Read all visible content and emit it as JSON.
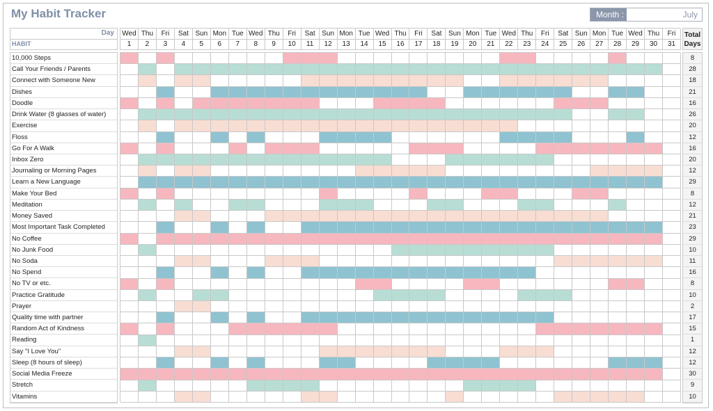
{
  "title": "My Habit Tracker",
  "month": {
    "label": "Month :",
    "value": "July"
  },
  "header": {
    "day_label": "Day",
    "habit_label": "HABIT",
    "total_label": "Total Days"
  },
  "days": [
    {
      "dow": "Wed",
      "num": "1"
    },
    {
      "dow": "Thu",
      "num": "2"
    },
    {
      "dow": "Fri",
      "num": "3"
    },
    {
      "dow": "Sat",
      "num": "4"
    },
    {
      "dow": "Sun",
      "num": "5"
    },
    {
      "dow": "Mon",
      "num": "6"
    },
    {
      "dow": "Tue",
      "num": "7"
    },
    {
      "dow": "Wed",
      "num": "8"
    },
    {
      "dow": "Thu",
      "num": "9"
    },
    {
      "dow": "Fri",
      "num": "10"
    },
    {
      "dow": "Sat",
      "num": "11"
    },
    {
      "dow": "Sun",
      "num": "12"
    },
    {
      "dow": "Mon",
      "num": "13"
    },
    {
      "dow": "Tue",
      "num": "14"
    },
    {
      "dow": "Wed",
      "num": "15"
    },
    {
      "dow": "Thu",
      "num": "16"
    },
    {
      "dow": "Fri",
      "num": "17"
    },
    {
      "dow": "Sat",
      "num": "18"
    },
    {
      "dow": "Sun",
      "num": "19"
    },
    {
      "dow": "Mon",
      "num": "20"
    },
    {
      "dow": "Tue",
      "num": "21"
    },
    {
      "dow": "Wed",
      "num": "22"
    },
    {
      "dow": "Thu",
      "num": "23"
    },
    {
      "dow": "Fri",
      "num": "24"
    },
    {
      "dow": "Sat",
      "num": "25"
    },
    {
      "dow": "Sun",
      "num": "26"
    },
    {
      "dow": "Mon",
      "num": "27"
    },
    {
      "dow": "Tue",
      "num": "28"
    },
    {
      "dow": "Wed",
      "num": "29"
    },
    {
      "dow": "Thu",
      "num": "30"
    },
    {
      "dow": "Fri",
      "num": "31"
    }
  ],
  "colors": {
    "pink": "#f7b7bf",
    "mint": "#b8ddd4",
    "peach": "#f8ddd3",
    "blue": "#8fc3d1"
  },
  "habits": [
    {
      "name": "10,000 Steps",
      "total": "8",
      "color": "pink",
      "done": [
        1,
        3,
        10,
        11,
        12,
        22,
        23,
        28
      ]
    },
    {
      "name": "Call Your Friends / Parents",
      "total": "28",
      "color": "mint",
      "done": [
        2,
        4,
        5,
        6,
        7,
        8,
        9,
        10,
        11,
        12,
        13,
        14,
        15,
        16,
        17,
        18,
        19,
        20,
        21,
        22,
        23,
        24,
        25,
        26,
        27,
        28,
        29,
        30
      ]
    },
    {
      "name": "Connect with Someone New",
      "total": "18",
      "color": "peach",
      "done": [
        2,
        4,
        5,
        11,
        12,
        13,
        14,
        15,
        16,
        17,
        18,
        19,
        22,
        23,
        24,
        25,
        26,
        27
      ]
    },
    {
      "name": "Dishes",
      "total": "21",
      "color": "blue",
      "done": [
        3,
        6,
        7,
        8,
        9,
        10,
        11,
        12,
        13,
        14,
        15,
        16,
        17,
        20,
        21,
        22,
        23,
        24,
        25,
        28,
        29
      ]
    },
    {
      "name": "Doodle",
      "total": "16",
      "color": "pink",
      "done": [
        1,
        3,
        5,
        6,
        7,
        8,
        9,
        10,
        11,
        15,
        16,
        17,
        18,
        25,
        26,
        27
      ]
    },
    {
      "name": "Drink Water (8 glasses of water)",
      "total": "26",
      "color": "mint",
      "done": [
        2,
        3,
        4,
        5,
        6,
        7,
        8,
        9,
        10,
        11,
        12,
        13,
        14,
        15,
        16,
        17,
        18,
        19,
        20,
        21,
        22,
        23,
        24,
        25,
        28,
        29
      ]
    },
    {
      "name": "Exercise",
      "total": "20",
      "color": "peach",
      "done": [
        2,
        4,
        5,
        6,
        7,
        8,
        9,
        10,
        11,
        12,
        13,
        14,
        15,
        16,
        17,
        18,
        19,
        20,
        21,
        22
      ]
    },
    {
      "name": "Floss",
      "total": "12",
      "color": "blue",
      "done": [
        3,
        6,
        8,
        12,
        13,
        14,
        15,
        22,
        23,
        24,
        25,
        29
      ]
    },
    {
      "name": "Go For A Walk",
      "total": "16",
      "color": "pink",
      "done": [
        1,
        3,
        7,
        9,
        10,
        11,
        17,
        18,
        19,
        24,
        25,
        26,
        27,
        28,
        29,
        30
      ]
    },
    {
      "name": "Inbox Zero",
      "total": "20",
      "color": "mint",
      "done": [
        2,
        3,
        4,
        5,
        6,
        7,
        8,
        9,
        10,
        11,
        12,
        13,
        14,
        15,
        19,
        20,
        21,
        22,
        23,
        24
      ]
    },
    {
      "name": "Journaling or Morning Pages",
      "total": "12",
      "color": "peach",
      "done": [
        2,
        4,
        5,
        14,
        15,
        16,
        17,
        18,
        27,
        28,
        29,
        30
      ]
    },
    {
      "name": "Learn a New Language",
      "total": "29",
      "color": "blue",
      "done": [
        2,
        3,
        4,
        5,
        6,
        7,
        8,
        9,
        10,
        11,
        12,
        13,
        14,
        15,
        16,
        17,
        18,
        19,
        20,
        21,
        22,
        23,
        24,
        25,
        26,
        27,
        28,
        29,
        30
      ]
    },
    {
      "name": "Make Your Bed",
      "total": "8",
      "color": "pink",
      "done": [
        1,
        3,
        12,
        17,
        21,
        22,
        26,
        27
      ]
    },
    {
      "name": "Meditation",
      "total": "12",
      "color": "mint",
      "done": [
        2,
        4,
        7,
        8,
        12,
        13,
        14,
        18,
        19,
        23,
        24,
        28
      ]
    },
    {
      "name": "Money Saved",
      "total": "21",
      "color": "peach",
      "done": [
        4,
        5,
        9,
        10,
        11,
        12,
        13,
        14,
        15,
        16,
        17,
        18,
        19,
        20,
        21,
        22,
        23,
        24,
        25,
        26,
        27
      ]
    },
    {
      "name": "Most Important Task Completed",
      "total": "23",
      "color": "blue",
      "done": [
        3,
        6,
        8,
        11,
        12,
        13,
        14,
        15,
        16,
        17,
        18,
        19,
        20,
        21,
        22,
        23,
        24,
        25,
        26,
        27,
        28,
        29,
        30
      ]
    },
    {
      "name": "No Coffee",
      "total": "29",
      "color": "pink",
      "done": [
        1,
        3,
        4,
        5,
        6,
        7,
        8,
        9,
        10,
        11,
        12,
        13,
        14,
        15,
        16,
        17,
        18,
        19,
        20,
        21,
        22,
        23,
        24,
        25,
        26,
        27,
        28,
        29,
        30
      ]
    },
    {
      "name": "No Junk Food",
      "total": "10",
      "color": "mint",
      "done": [
        2,
        16,
        17,
        18,
        19,
        20,
        21,
        22,
        23,
        24
      ]
    },
    {
      "name": "No Soda",
      "total": "11",
      "color": "peach",
      "done": [
        4,
        5,
        9,
        10,
        11,
        25,
        26,
        27,
        28,
        29,
        30
      ]
    },
    {
      "name": "No Spend",
      "total": "16",
      "color": "blue",
      "done": [
        3,
        6,
        8,
        11,
        12,
        13,
        14,
        15,
        16,
        17,
        18,
        19,
        20,
        21,
        22,
        23
      ]
    },
    {
      "name": "No TV or etc.",
      "total": "8",
      "color": "pink",
      "done": [
        1,
        3,
        14,
        15,
        20,
        21,
        28,
        29
      ]
    },
    {
      "name": "Practice Gratitude",
      "total": "10",
      "color": "mint",
      "done": [
        2,
        5,
        6,
        15,
        16,
        17,
        18,
        23,
        24,
        25
      ]
    },
    {
      "name": "Prayer",
      "total": "2",
      "color": "peach",
      "done": [
        4,
        5
      ]
    },
    {
      "name": "Quality time with partner",
      "total": "17",
      "color": "blue",
      "done": [
        3,
        6,
        8,
        11,
        12,
        13,
        14,
        15,
        16,
        17,
        18,
        19,
        20,
        21,
        22,
        23,
        24
      ]
    },
    {
      "name": "Random Act of Kindness",
      "total": "15",
      "color": "pink",
      "done": [
        1,
        3,
        7,
        8,
        9,
        10,
        11,
        12,
        24,
        25,
        26,
        27,
        28,
        29,
        30
      ]
    },
    {
      "name": "Reading",
      "total": "1",
      "color": "mint",
      "done": [
        2
      ]
    },
    {
      "name": "Say \"I Love You\"",
      "total": "12",
      "color": "peach",
      "done": [
        4,
        5,
        12,
        13,
        14,
        15,
        16,
        17,
        18,
        22,
        23,
        24
      ]
    },
    {
      "name": "Sleep (8 hours of sleep)",
      "total": "12",
      "color": "blue",
      "done": [
        3,
        6,
        8,
        12,
        13,
        18,
        19,
        20,
        21,
        28,
        29,
        30
      ]
    },
    {
      "name": "Social Media Freeze",
      "total": "30",
      "color": "pink",
      "done": [
        1,
        2,
        3,
        4,
        5,
        6,
        7,
        8,
        9,
        10,
        11,
        12,
        13,
        14,
        15,
        16,
        17,
        18,
        19,
        20,
        21,
        22,
        23,
        24,
        25,
        26,
        27,
        28,
        29,
        30
      ]
    },
    {
      "name": "Stretch",
      "total": "9",
      "color": "mint",
      "done": [
        2,
        8,
        9,
        10,
        11,
        20,
        21,
        22,
        23
      ]
    },
    {
      "name": "Vitamins",
      "total": "10",
      "color": "peach",
      "done": [
        4,
        5,
        11,
        12,
        19,
        25,
        26,
        27,
        28,
        29
      ]
    }
  ]
}
